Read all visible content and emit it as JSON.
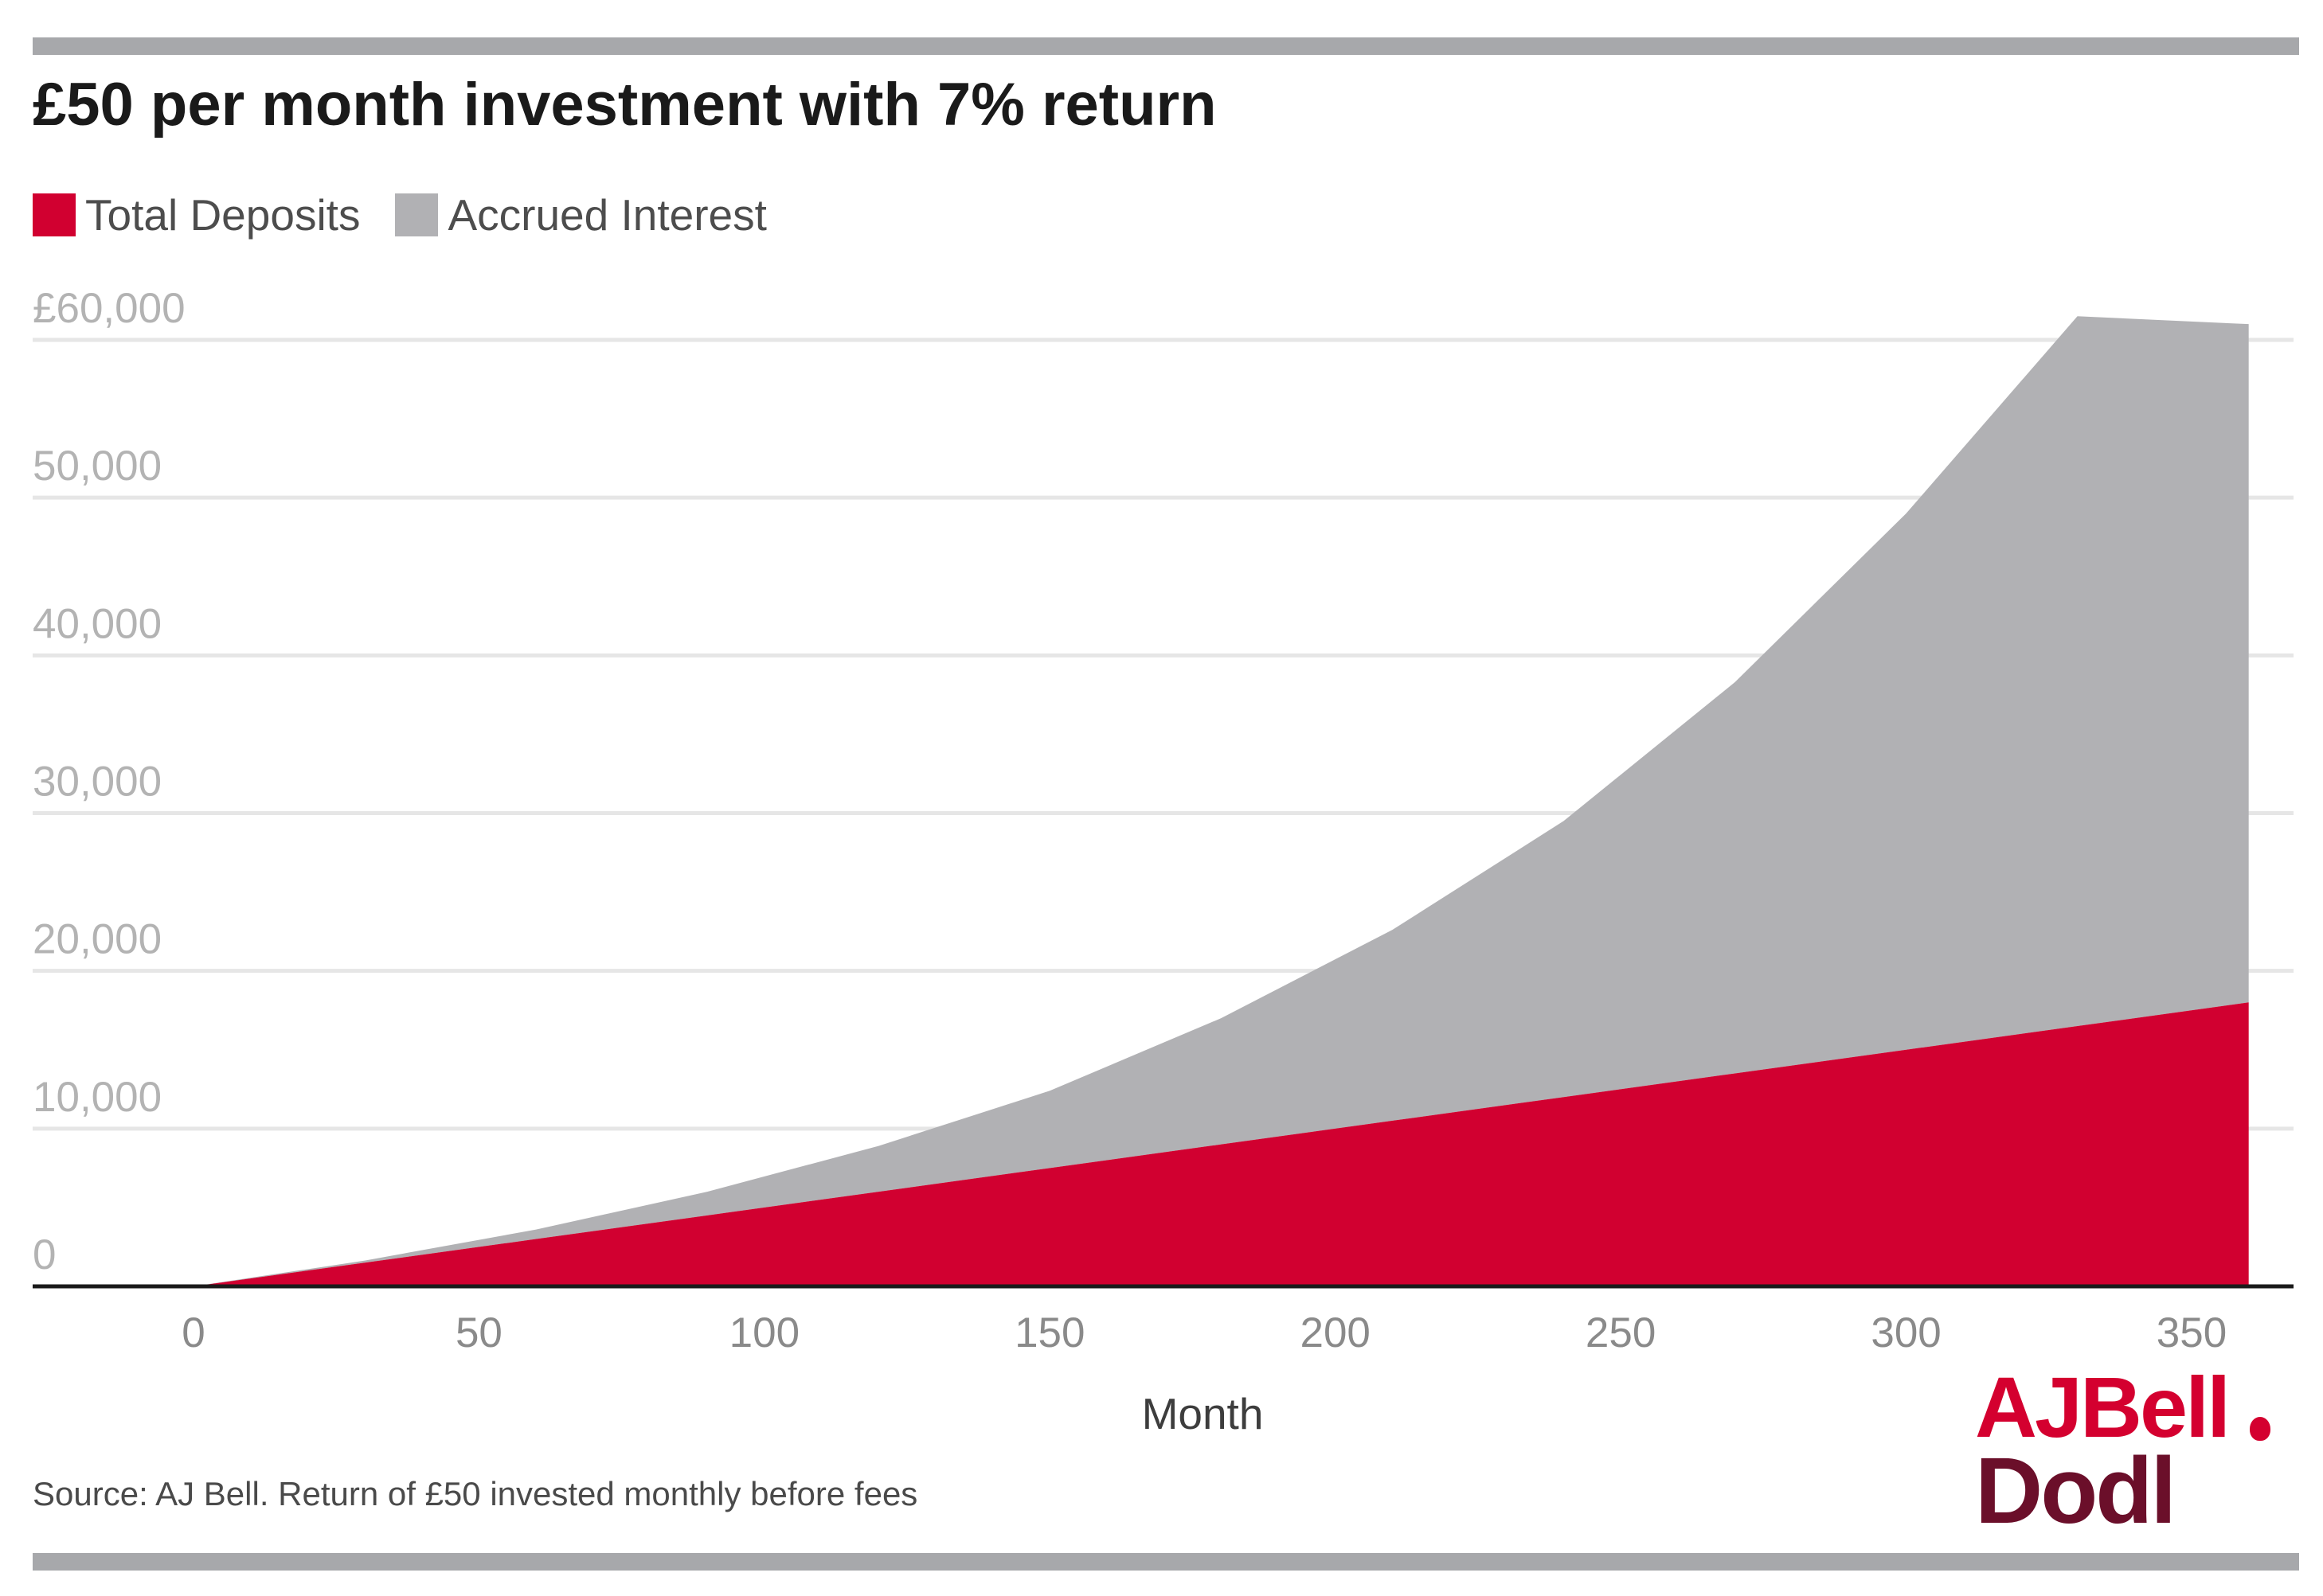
{
  "title": "£50 per month investment with 7% return",
  "legend": [
    {
      "label": "Total Deposits",
      "color": "#d10030"
    },
    {
      "label": "Accrued Interest",
      "color": "#b1b1b4"
    }
  ],
  "source": "Source: AJ Bell. Return of £50 invested monthly before fees",
  "logo": {
    "line1": "AJBell",
    "line2": "Dodl"
  },
  "chart_data": {
    "type": "area",
    "stacked": true,
    "xlabel": "Month",
    "ylabel": "",
    "xlim": [
      0,
      360
    ],
    "ylim": [
      0,
      60000
    ],
    "x_ticks": [
      "0",
      "50",
      "100",
      "150",
      "200",
      "250",
      "300",
      "350"
    ],
    "y_ticks": [
      "0",
      "10,000",
      "20,000",
      "30,000",
      "40,000",
      "50,000",
      "£60,000"
    ],
    "grid": "horizontal",
    "legend_position": "top-left",
    "x": [
      0,
      30,
      60,
      90,
      120,
      150,
      180,
      210,
      240,
      270,
      300,
      330,
      360
    ],
    "series": [
      {
        "name": "Total Deposits",
        "values": [
          0,
          1500,
          3000,
          4500,
          6000,
          7500,
          9000,
          10500,
          12000,
          13500,
          15000,
          16500,
          18000
        ]
      },
      {
        "name": "Accrued Interest",
        "values": [
          0,
          135,
          600,
          1500,
          2900,
          4900,
          8000,
          12100,
          17500,
          24800,
          34000,
          45000,
          43000
        ]
      }
    ]
  }
}
